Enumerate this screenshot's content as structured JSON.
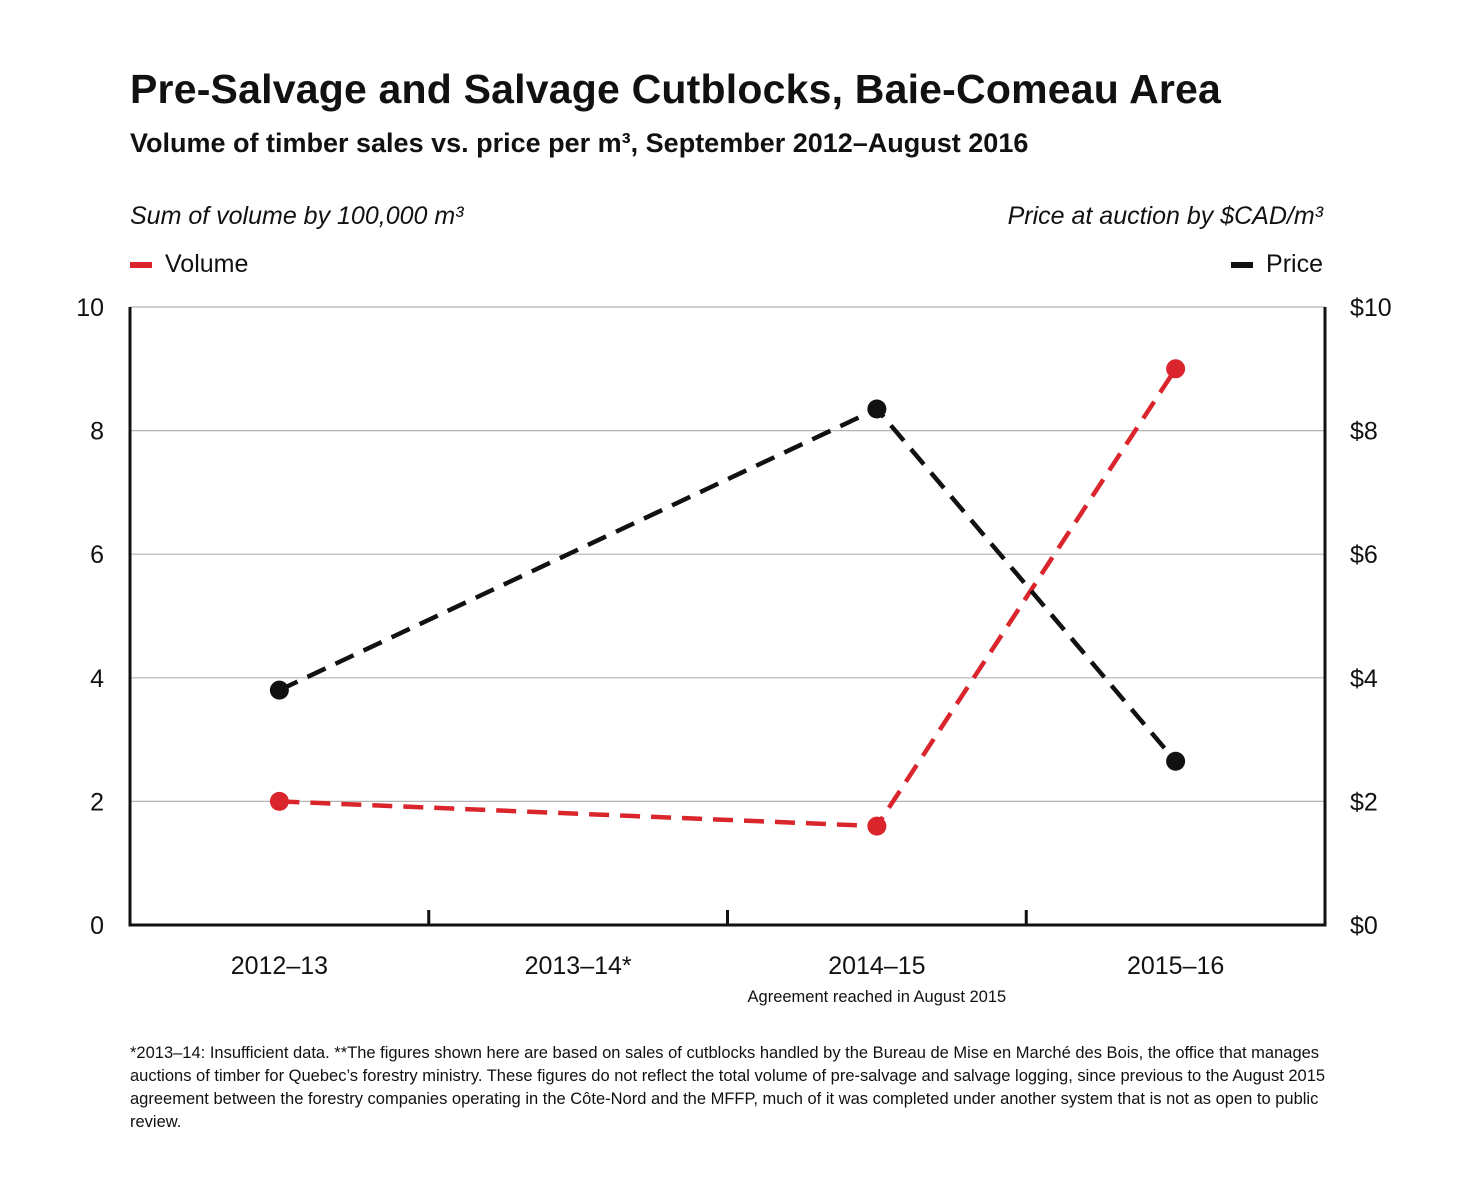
{
  "title": "Pre-Salvage and Salvage Cutblocks, Baie-Comeau Area",
  "subtitle": "Volume of timber sales vs. price per m³, September 2012–August 2016",
  "chart_data": {
    "type": "line",
    "categories": [
      "2012–13",
      "2013–14*",
      "2014–15",
      "2015–16"
    ],
    "category_note": {
      "category": "2014–15",
      "text": "Agreement reached in August 2015"
    },
    "left_axis": {
      "title": "Sum of volume by 100,000 m³",
      "ylim": [
        0,
        10
      ],
      "ticks": [
        "0",
        "2",
        "4",
        "6",
        "8",
        "10"
      ]
    },
    "right_axis": {
      "title": "Price at auction by $CAD/m³",
      "ylim": [
        0,
        10
      ],
      "ticks": [
        "$0",
        "$2",
        "$4",
        "$6",
        "$8",
        "$10"
      ]
    },
    "series": [
      {
        "name": "Volume",
        "axis": "left",
        "color": "#d9252b",
        "style": "dashed",
        "points": [
          {
            "category": "2012–13",
            "value": 2.0
          },
          {
            "category": "2014–15",
            "value": 1.6
          },
          {
            "category": "2015–16",
            "value": 9.0
          }
        ]
      },
      {
        "name": "Price",
        "axis": "right",
        "color": "#111111",
        "style": "dashed",
        "points": [
          {
            "category": "2012–13",
            "value": 3.8
          },
          {
            "category": "2014–15",
            "value": 8.35
          },
          {
            "category": "2015–16",
            "value": 2.65
          }
        ]
      }
    ],
    "grid": true,
    "legend": {
      "left": "Volume",
      "right": "Price"
    }
  },
  "footnote": "*2013–14: Insufficient data. **The figures shown here are based on sales of cutblocks handled by the Bureau de Mise en Marché des Bois, the office that manages auctions of timber for Quebec’s forestry ministry. These figures do not reflect the total volume of pre-salvage and salvage logging, since previous to the August 2015 agreement between the forestry companies operating in the Côte-Nord and the MFFP, much of it was completed under another system that is not as open to public review."
}
